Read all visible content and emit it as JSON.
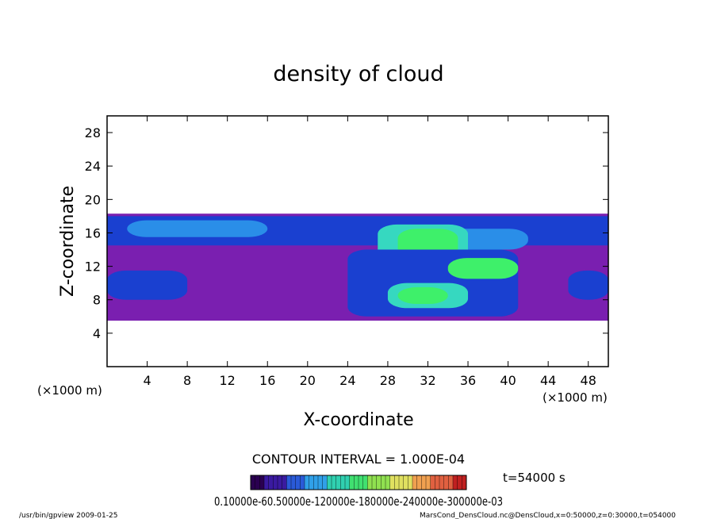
{
  "chart_data": {
    "type": "heatmap",
    "title": "density of cloud",
    "xlabel": "X-coordinate",
    "ylabel": "Z-coordinate",
    "x_unit": "(×1000 m)",
    "y_unit": "(×1000 m)",
    "xlim": [
      0,
      50
    ],
    "ylim": [
      0,
      30
    ],
    "x_ticks": [
      4,
      8,
      12,
      16,
      20,
      24,
      28,
      32,
      36,
      40,
      44,
      48
    ],
    "y_ticks": [
      4,
      8,
      12,
      16,
      20,
      24,
      28
    ],
    "contour_interval": "CONTOUR INTERVAL = 1.000E-04",
    "time_label": "t=54000 s",
    "colorbar_labels": "0.10000e-60.50000e-120000e-180000e-240000e-300000e-03",
    "colorbar_colors": [
      "#2a0050",
      "#3a1aa0",
      "#2a5ad8",
      "#30a0e8",
      "#30d0b0",
      "#40e070",
      "#90e050",
      "#e0e060",
      "#f0a050",
      "#e06040",
      "#c02020"
    ],
    "field_colors": {
      "cloud_low": "#7a1fb0",
      "cloud_mid": "#1a40d0",
      "cloud_midhigh": "#2a8ee8",
      "cloud_high": "#36d8c0",
      "cloud_peak": "#3ef06a"
    },
    "cloud_regions": [
      {
        "level": "cloud_low",
        "x": [
          0,
          50
        ],
        "z": [
          5.5,
          18.3
        ]
      },
      {
        "level": "cloud_mid",
        "x": [
          0,
          50
        ],
        "z": [
          14.5,
          18
        ]
      },
      {
        "level": "cloud_midhigh",
        "x": [
          2,
          16
        ],
        "z": [
          15.5,
          17.5
        ]
      },
      {
        "level": "cloud_midhigh",
        "x": [
          30,
          42
        ],
        "z": [
          14,
          16.5
        ]
      },
      {
        "level": "cloud_high",
        "x": [
          27,
          36
        ],
        "z": [
          12.5,
          17
        ]
      },
      {
        "level": "cloud_peak",
        "x": [
          29,
          35
        ],
        "z": [
          13,
          16.5
        ]
      },
      {
        "level": "cloud_mid",
        "x": [
          24,
          41
        ],
        "z": [
          6,
          14
        ]
      },
      {
        "level": "cloud_high",
        "x": [
          28,
          36
        ],
        "z": [
          7,
          10
        ]
      },
      {
        "level": "cloud_peak",
        "x": [
          29,
          34
        ],
        "z": [
          7.5,
          9.5
        ]
      },
      {
        "level": "cloud_peak",
        "x": [
          34,
          41
        ],
        "z": [
          10.5,
          13
        ]
      },
      {
        "level": "cloud_mid",
        "x": [
          0,
          8
        ],
        "z": [
          8,
          11.5
        ]
      },
      {
        "level": "cloud_mid",
        "x": [
          46,
          50
        ],
        "z": [
          8,
          11.5
        ]
      }
    ]
  },
  "footer": {
    "program": "/usr/bin/gpview   2009-01-25",
    "source": "MarsCond_DensCloud.nc@DensCloud,x=0:50000,z=0:30000,t=054000"
  }
}
